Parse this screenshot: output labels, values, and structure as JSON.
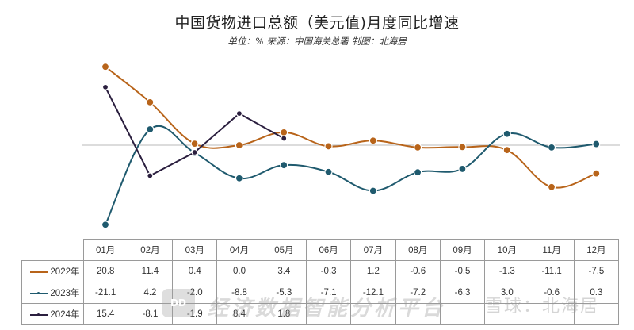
{
  "header": {
    "title": "中国货物进口总额（美元值)月度同比增速",
    "subtitle": "单位：% 来源：中国海关总署 制图：北海居"
  },
  "table": {
    "months": [
      "01月",
      "02月",
      "03月",
      "04月",
      "05月",
      "06月",
      "07月",
      "08月",
      "09月",
      "10月",
      "11月",
      "12月"
    ],
    "rows": [
      {
        "label": "2022年",
        "color": "#b8641a",
        "values": [
          "20.8",
          "11.4",
          "0.4",
          "0.0",
          "3.4",
          "-0.3",
          "1.2",
          "-0.6",
          "-0.5",
          "-1.3",
          "-11.1",
          "-7.5"
        ]
      },
      {
        "label": "2023年",
        "color": "#1f5a6e",
        "values": [
          "-21.1",
          "4.2",
          "-2.0",
          "-8.8",
          "-5.3",
          "-7.1",
          "-12.1",
          "-7.2",
          "-6.3",
          "3.0",
          "-0.6",
          "0.3"
        ]
      },
      {
        "label": "2024年",
        "color": "#2b1f3f",
        "values": [
          "15.4",
          "-8.1",
          "-1.9",
          "8.4",
          "1.8",
          "",
          "",
          "",
          "",
          "",
          "",
          ""
        ]
      }
    ]
  },
  "watermark": {
    "logo": "DD",
    "text": "经济数据智能分析平台",
    "text2": "雪球：北海居"
  },
  "chart_data": {
    "type": "line",
    "title": "中国货物进口总额（美元值)月度同比增速",
    "subtitle": "单位：% 来源：中国海关总署 制图：北海居",
    "xlabel": "",
    "ylabel": "%",
    "categories": [
      "01月",
      "02月",
      "03月",
      "04月",
      "05月",
      "06月",
      "07月",
      "08月",
      "09月",
      "10月",
      "11月",
      "12月"
    ],
    "series": [
      {
        "name": "2022年",
        "color": "#b8641a",
        "values": [
          20.8,
          11.4,
          0.4,
          0.0,
          3.4,
          -0.3,
          1.2,
          -0.6,
          -0.5,
          -1.3,
          -11.1,
          -7.5
        ]
      },
      {
        "name": "2023年",
        "color": "#1f5a6e",
        "values": [
          -21.1,
          4.2,
          -2.0,
          -8.8,
          -5.3,
          -7.1,
          -12.1,
          -7.2,
          -6.3,
          3.0,
          -0.6,
          0.3
        ]
      },
      {
        "name": "2024年",
        "color": "#2b1f3f",
        "values": [
          15.4,
          -8.1,
          -1.9,
          8.4,
          1.8,
          null,
          null,
          null,
          null,
          null,
          null,
          null
        ]
      }
    ],
    "ylim": [
      -22,
      22
    ],
    "grid": false,
    "zero_line": true,
    "legend_position": "data-table-left"
  }
}
